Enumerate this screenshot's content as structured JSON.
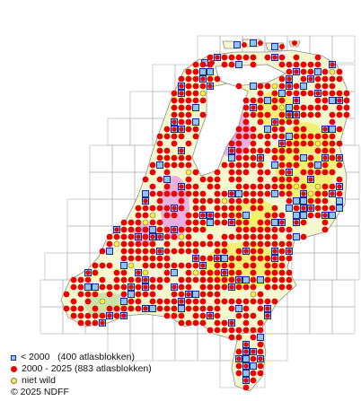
{
  "map": {
    "colors": {
      "land": "#f4f9d0",
      "land_yellow": "#f2ef6a",
      "land_pink": "#e6a7df",
      "land_green": "#c7e0a2",
      "water": "#ffffff",
      "coast": "#8c8c8c",
      "grid": "#b4b4b4",
      "square_fill": "#8ec7ec",
      "square_border": "#1a2a9c",
      "dot_red": "#ee0000",
      "dot_yellow": "#ffee33"
    }
  },
  "legend": {
    "items": [
      {
        "symbol": "blue-square",
        "label": "< 2000   (400 atlasblokken)"
      },
      {
        "symbol": "red-dot",
        "label": "2000 - 2025 (883 atlasblokken)"
      },
      {
        "symbol": "yellow-dot",
        "label": "niet wild"
      }
    ],
    "copyright": "© 2025 NDFF"
  }
}
